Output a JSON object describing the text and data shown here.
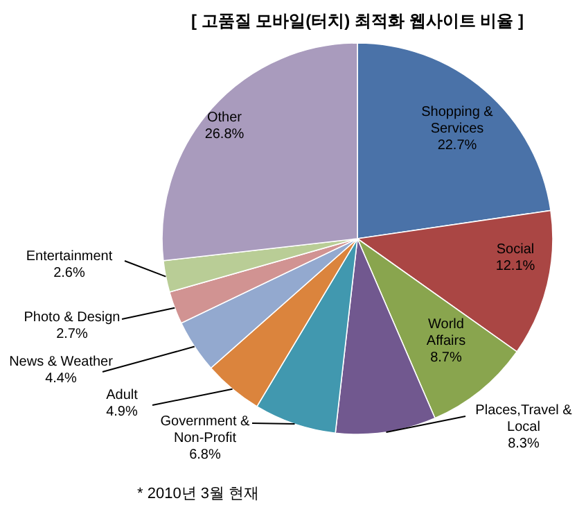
{
  "chart_data": {
    "type": "pie",
    "title": "[ 고품질 모바일(터치) 최적화 웹사이트 비율 ]",
    "categories": [
      "Shopping & Services",
      "Social",
      "World Affairs",
      "Places,Travel & Local",
      "Government & Non-Profit",
      "Adult",
      "News & Weather",
      "Photo & Design",
      "Entertainment",
      "Other"
    ],
    "values": [
      22.7,
      12.1,
      8.7,
      8.3,
      6.8,
      4.9,
      4.4,
      2.7,
      2.6,
      26.8
    ],
    "value_labels": [
      "22.7%",
      "12.1%",
      "8.7%",
      "8.3%",
      "6.8%",
      "4.9%",
      "4.4%",
      "2.7%",
      "2.6%",
      "26.8%"
    ],
    "colors": [
      "#4a72a8",
      "#aa4644",
      "#89a54e",
      "#71588f",
      "#4198af",
      "#db843d",
      "#93a9cf",
      "#d19392",
      "#b9cd96",
      "#a99bbd"
    ],
    "annotations": [
      "* 2010년 3월 현재"
    ],
    "legend": false
  }
}
